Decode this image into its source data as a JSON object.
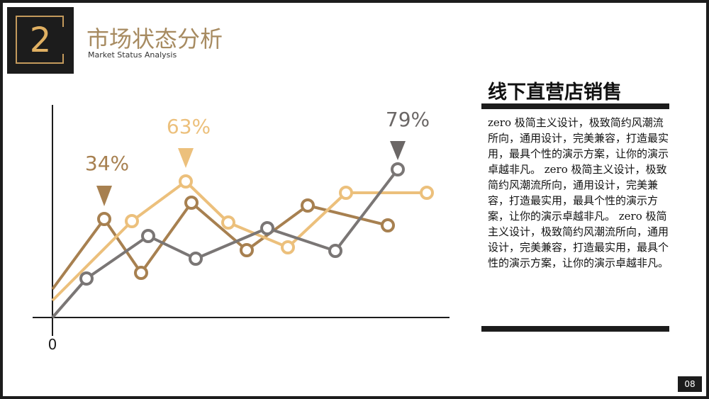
{
  "header": {
    "section_number": "2",
    "title": "市场状态分析",
    "subtitle": "Market Status Analysis"
  },
  "chart_data": {
    "type": "line",
    "x": [
      0,
      1,
      2,
      3,
      4,
      5,
      6,
      7,
      8
    ],
    "xtick_labels": [
      "0"
    ],
    "series": [
      {
        "color": "#a78050",
        "x": [
          0,
          1,
          2,
          3,
          4,
          5,
          6,
          7,
          8
        ],
        "values": [
          12,
          37,
          18,
          33,
          22,
          35,
          27,
          null,
          null
        ]
      },
      {
        "color": "#ecc07c",
        "x": [
          0,
          1,
          2,
          3,
          4,
          5,
          6,
          7,
          8,
          9
        ],
        "values": [
          6,
          null,
          29,
          null,
          49,
          28,
          25,
          39,
          null,
          39
        ],
        "values_note": ""
      },
      {
        "color": "#7a7675",
        "x": [
          0,
          1,
          2,
          3,
          4,
          5,
          6,
          7,
          8
        ],
        "values": [
          0,
          13,
          25,
          21,
          27,
          21,
          54,
          null,
          null
        ]
      }
    ],
    "annotations": [
      {
        "text": "34%",
        "color": "#a78050"
      },
      {
        "text": "63%",
        "color": "#ecc07c"
      },
      {
        "text": "79%",
        "color": "#6b6766"
      }
    ]
  },
  "panel": {
    "heading": "线下直营店销售",
    "body": "zero 极简主义设计，极致简约风潮流所向，通用设计，完美兼容，打造最实用，最具个性的演示方案，让你的演示卓越非凡。 zero 极简主义设计，极致简约风潮流所向，通用设计，完美兼容，打造最实用，最具个性的演示方案，让你的演示卓越非凡。 zero 极简主义设计，极致简约风潮流所向，通用设计，完美兼容，打造最实用，最具个性的演示方案，让你的演示卓越非凡。"
  },
  "footer": {
    "page_number": "08"
  }
}
